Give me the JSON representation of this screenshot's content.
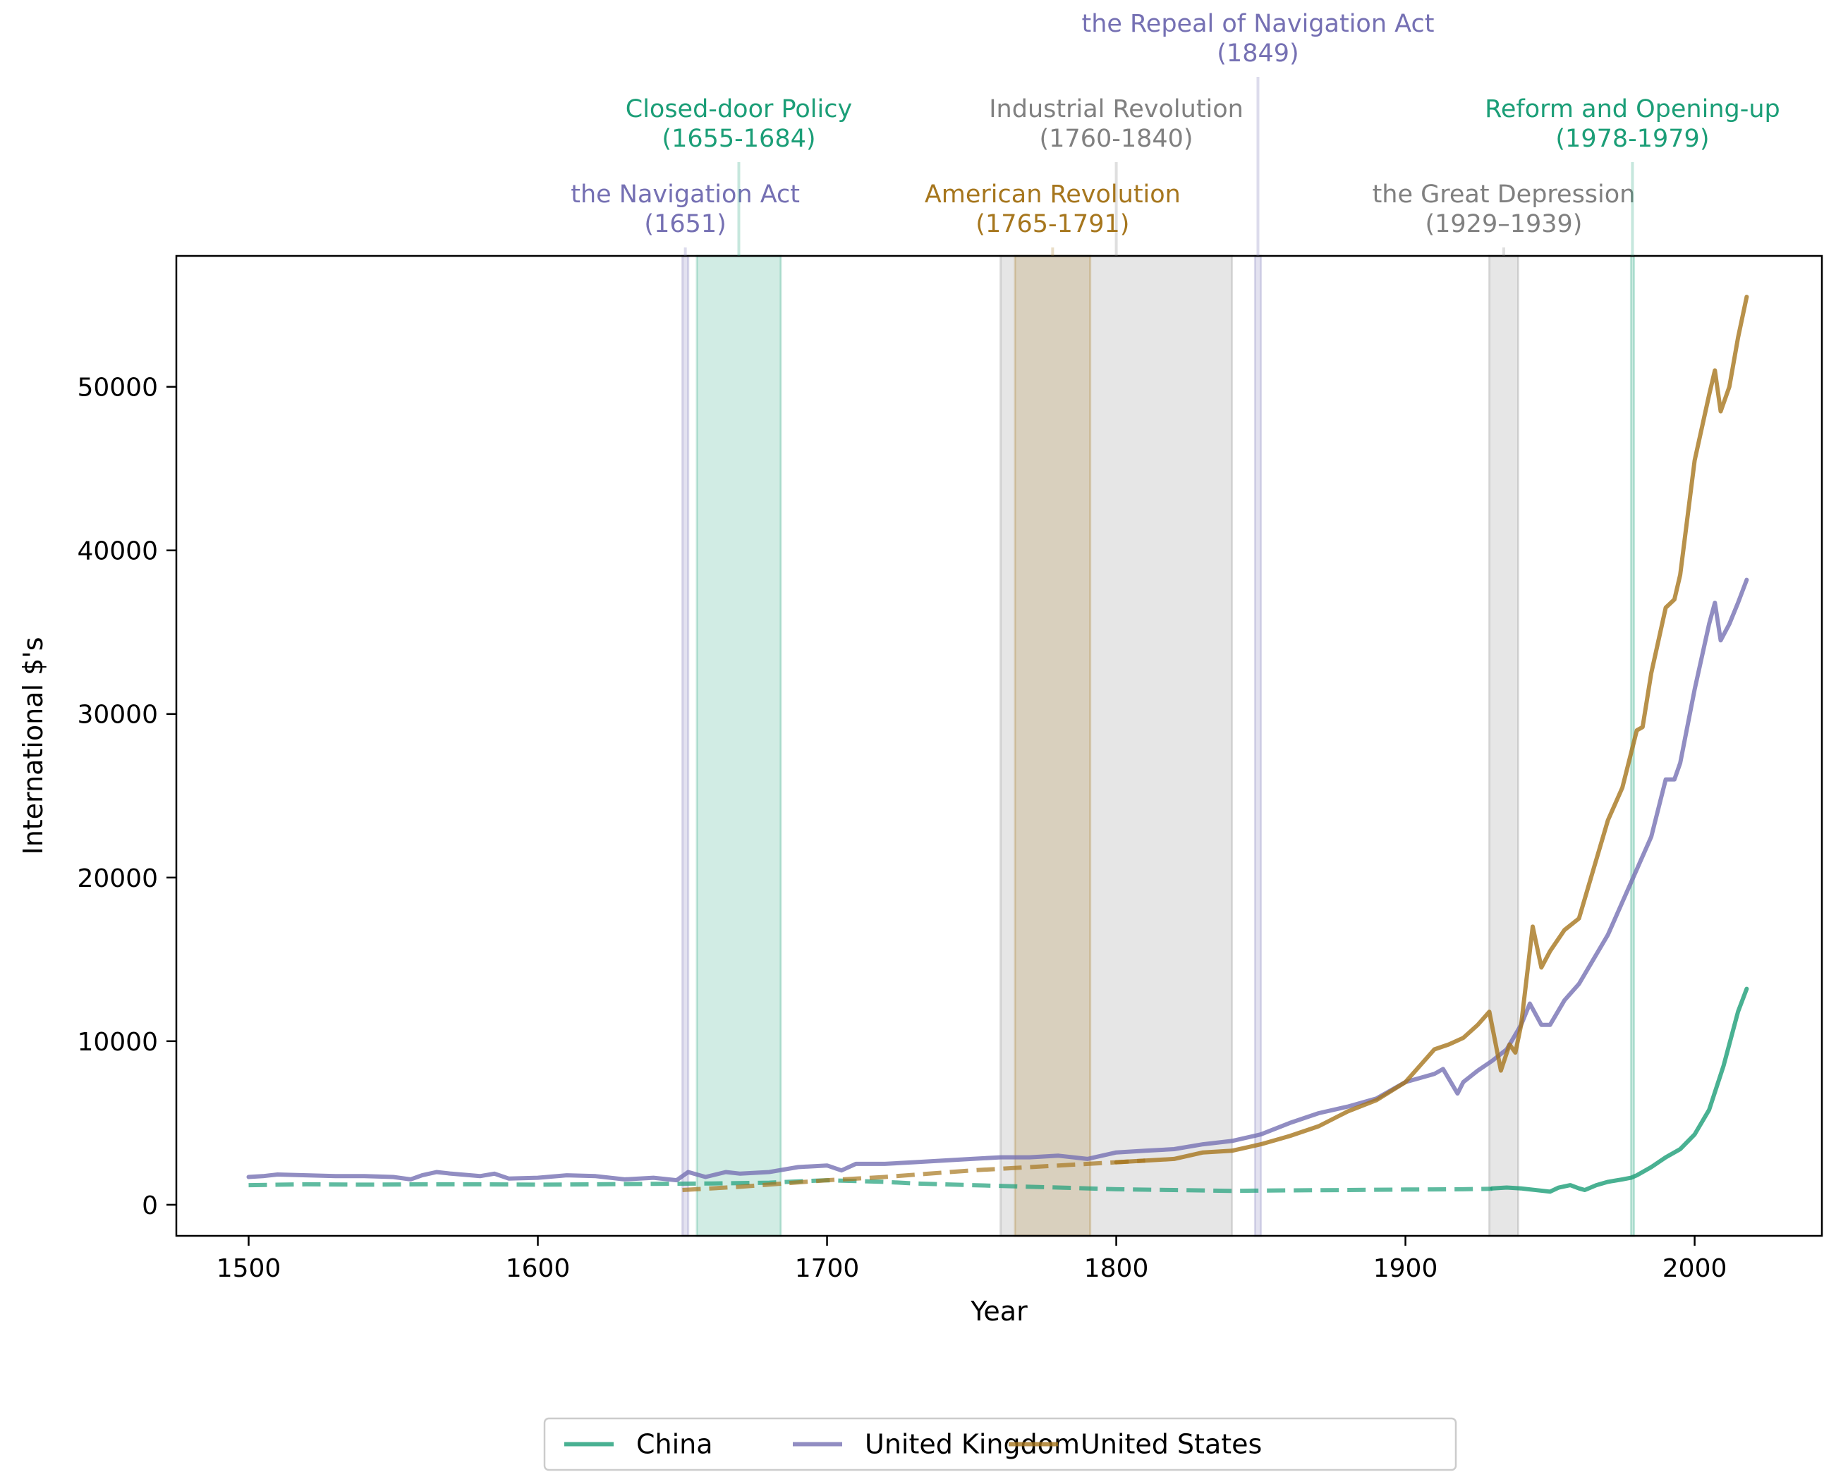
{
  "chart_data": {
    "type": "line",
    "xlabel": "Year",
    "ylabel": "International $'s",
    "xlim": [
      1475,
      2044
    ],
    "ylim": [
      -1900,
      58000
    ],
    "xticks": [
      1500,
      1600,
      1700,
      1800,
      1900,
      2000
    ],
    "yticks": [
      0,
      10000,
      20000,
      30000,
      40000,
      50000
    ],
    "grid": false,
    "legend": {
      "placement": "bottom-center",
      "entries": [
        "China",
        "United Kingdom",
        "United States"
      ]
    },
    "series": [
      {
        "name": "China",
        "color": "#1b9e77",
        "dashed_points": [
          [
            1500,
            1200
          ],
          [
            1520,
            1250
          ],
          [
            1540,
            1230
          ],
          [
            1560,
            1250
          ],
          [
            1580,
            1250
          ],
          [
            1600,
            1230
          ],
          [
            1620,
            1250
          ],
          [
            1640,
            1280
          ],
          [
            1660,
            1300
          ],
          [
            1680,
            1350
          ],
          [
            1700,
            1500
          ],
          [
            1710,
            1450
          ],
          [
            1720,
            1400
          ],
          [
            1730,
            1300
          ],
          [
            1750,
            1200
          ],
          [
            1780,
            1050
          ],
          [
            1800,
            950
          ],
          [
            1820,
            900
          ],
          [
            1840,
            850
          ],
          [
            1860,
            880
          ],
          [
            1880,
            900
          ],
          [
            1900,
            930
          ],
          [
            1920,
            950
          ],
          [
            1930,
            980
          ]
        ],
        "solid_points": [
          [
            1930,
            1000
          ],
          [
            1935,
            1050
          ],
          [
            1940,
            1000
          ],
          [
            1950,
            800
          ],
          [
            1953,
            1050
          ],
          [
            1957,
            1200
          ],
          [
            1960,
            1000
          ],
          [
            1962,
            900
          ],
          [
            1966,
            1200
          ],
          [
            1970,
            1400
          ],
          [
            1975,
            1550
          ],
          [
            1978,
            1650
          ],
          [
            1980,
            1800
          ],
          [
            1985,
            2300
          ],
          [
            1990,
            2900
          ],
          [
            1995,
            3400
          ],
          [
            2000,
            4300
          ],
          [
            2005,
            5800
          ],
          [
            2010,
            8500
          ],
          [
            2015,
            11800
          ],
          [
            2018,
            13200
          ]
        ]
      },
      {
        "name": "United Kingdom",
        "color": "#7570b3",
        "dashed_points": [],
        "solid_points": [
          [
            1500,
            1700
          ],
          [
            1505,
            1750
          ],
          [
            1510,
            1850
          ],
          [
            1520,
            1800
          ],
          [
            1530,
            1750
          ],
          [
            1540,
            1750
          ],
          [
            1550,
            1700
          ],
          [
            1556,
            1550
          ],
          [
            1560,
            1800
          ],
          [
            1565,
            2000
          ],
          [
            1570,
            1900
          ],
          [
            1580,
            1750
          ],
          [
            1585,
            1900
          ],
          [
            1590,
            1600
          ],
          [
            1600,
            1650
          ],
          [
            1610,
            1800
          ],
          [
            1620,
            1750
          ],
          [
            1630,
            1550
          ],
          [
            1640,
            1650
          ],
          [
            1648,
            1500
          ],
          [
            1652,
            2000
          ],
          [
            1658,
            1700
          ],
          [
            1665,
            2000
          ],
          [
            1670,
            1900
          ],
          [
            1680,
            2000
          ],
          [
            1690,
            2300
          ],
          [
            1700,
            2400
          ],
          [
            1705,
            2100
          ],
          [
            1710,
            2500
          ],
          [
            1720,
            2500
          ],
          [
            1730,
            2600
          ],
          [
            1740,
            2700
          ],
          [
            1750,
            2800
          ],
          [
            1760,
            2900
          ],
          [
            1770,
            2900
          ],
          [
            1780,
            3000
          ],
          [
            1790,
            2800
          ],
          [
            1800,
            3200
          ],
          [
            1810,
            3300
          ],
          [
            1820,
            3400
          ],
          [
            1830,
            3700
          ],
          [
            1840,
            3900
          ],
          [
            1850,
            4300
          ],
          [
            1860,
            5000
          ],
          [
            1870,
            5600
          ],
          [
            1880,
            6000
          ],
          [
            1890,
            6500
          ],
          [
            1900,
            7500
          ],
          [
            1910,
            8000
          ],
          [
            1913,
            8300
          ],
          [
            1918,
            6800
          ],
          [
            1920,
            7500
          ],
          [
            1925,
            8200
          ],
          [
            1930,
            8800
          ],
          [
            1935,
            9500
          ],
          [
            1940,
            11000
          ],
          [
            1943,
            12300
          ],
          [
            1947,
            11000
          ],
          [
            1950,
            11000
          ],
          [
            1955,
            12500
          ],
          [
            1960,
            13500
          ],
          [
            1965,
            15000
          ],
          [
            1970,
            16500
          ],
          [
            1975,
            18500
          ],
          [
            1980,
            20500
          ],
          [
            1985,
            22500
          ],
          [
            1990,
            26000
          ],
          [
            1993,
            26000
          ],
          [
            1995,
            27000
          ],
          [
            2000,
            31500
          ],
          [
            2005,
            35500
          ],
          [
            2007,
            36800
          ],
          [
            2009,
            34500
          ],
          [
            2012,
            35500
          ],
          [
            2015,
            36800
          ],
          [
            2018,
            38200
          ]
        ]
      },
      {
        "name": "United States",
        "color": "#a6761d",
        "dashed_points": [
          [
            1650,
            900
          ],
          [
            1670,
            1100
          ],
          [
            1700,
            1500
          ],
          [
            1720,
            1700
          ],
          [
            1750,
            2100
          ],
          [
            1780,
            2400
          ],
          [
            1800,
            2600
          ],
          [
            1810,
            2700
          ]
        ],
        "solid_points": [
          [
            1800,
            2600
          ],
          [
            1810,
            2700
          ],
          [
            1820,
            2800
          ],
          [
            1830,
            3200
          ],
          [
            1840,
            3300
          ],
          [
            1850,
            3700
          ],
          [
            1860,
            4200
          ],
          [
            1870,
            4800
          ],
          [
            1880,
            5700
          ],
          [
            1890,
            6400
          ],
          [
            1900,
            7500
          ],
          [
            1905,
            8500
          ],
          [
            1910,
            9500
          ],
          [
            1915,
            9800
          ],
          [
            1920,
            10200
          ],
          [
            1925,
            11000
          ],
          [
            1929,
            11800
          ],
          [
            1933,
            8200
          ],
          [
            1936,
            9800
          ],
          [
            1938,
            9300
          ],
          [
            1940,
            11000
          ],
          [
            1944,
            17000
          ],
          [
            1947,
            14500
          ],
          [
            1950,
            15500
          ],
          [
            1955,
            16800
          ],
          [
            1960,
            17500
          ],
          [
            1965,
            20500
          ],
          [
            1970,
            23500
          ],
          [
            1975,
            25500
          ],
          [
            1980,
            29000
          ],
          [
            1982,
            29200
          ],
          [
            1985,
            32500
          ],
          [
            1990,
            36500
          ],
          [
            1993,
            37000
          ],
          [
            1995,
            38500
          ],
          [
            2000,
            45500
          ],
          [
            2005,
            49500
          ],
          [
            2007,
            51000
          ],
          [
            2009,
            48500
          ],
          [
            2012,
            50000
          ],
          [
            2015,
            53000
          ],
          [
            2018,
            55500
          ]
        ]
      }
    ],
    "annotations": [
      {
        "line1": "the Navigation Act",
        "line2": "(1651)",
        "start": 1650,
        "end": 1652,
        "color": "#7570b3",
        "row": 3
      },
      {
        "line1": "Closed-door Policy",
        "line2": "(1655-1684)",
        "start": 1655,
        "end": 1684,
        "color": "#1b9e77",
        "row": 2
      },
      {
        "line1": "Industrial Revolution",
        "line2": "(1760-1840)",
        "start": 1760,
        "end": 1840,
        "color": "#808080",
        "row": 2
      },
      {
        "line1": "American Revolution",
        "line2": "(1765-1791)",
        "start": 1765,
        "end": 1791,
        "color": "#a6761d",
        "row": 3
      },
      {
        "line1": "the Repeal of Navigation Act",
        "line2": "(1849)",
        "start": 1848,
        "end": 1850,
        "color": "#7570b3",
        "row": 1
      },
      {
        "line1": "the Great Depression",
        "line2": "(1929–1939)",
        "start": 1929,
        "end": 1939,
        "color": "#808080",
        "row": 3
      },
      {
        "line1": "Reform and Opening-up",
        "line2": "(1978-1979)",
        "start": 1978,
        "end": 1979,
        "color": "#1b9e77",
        "row": 2
      }
    ]
  }
}
